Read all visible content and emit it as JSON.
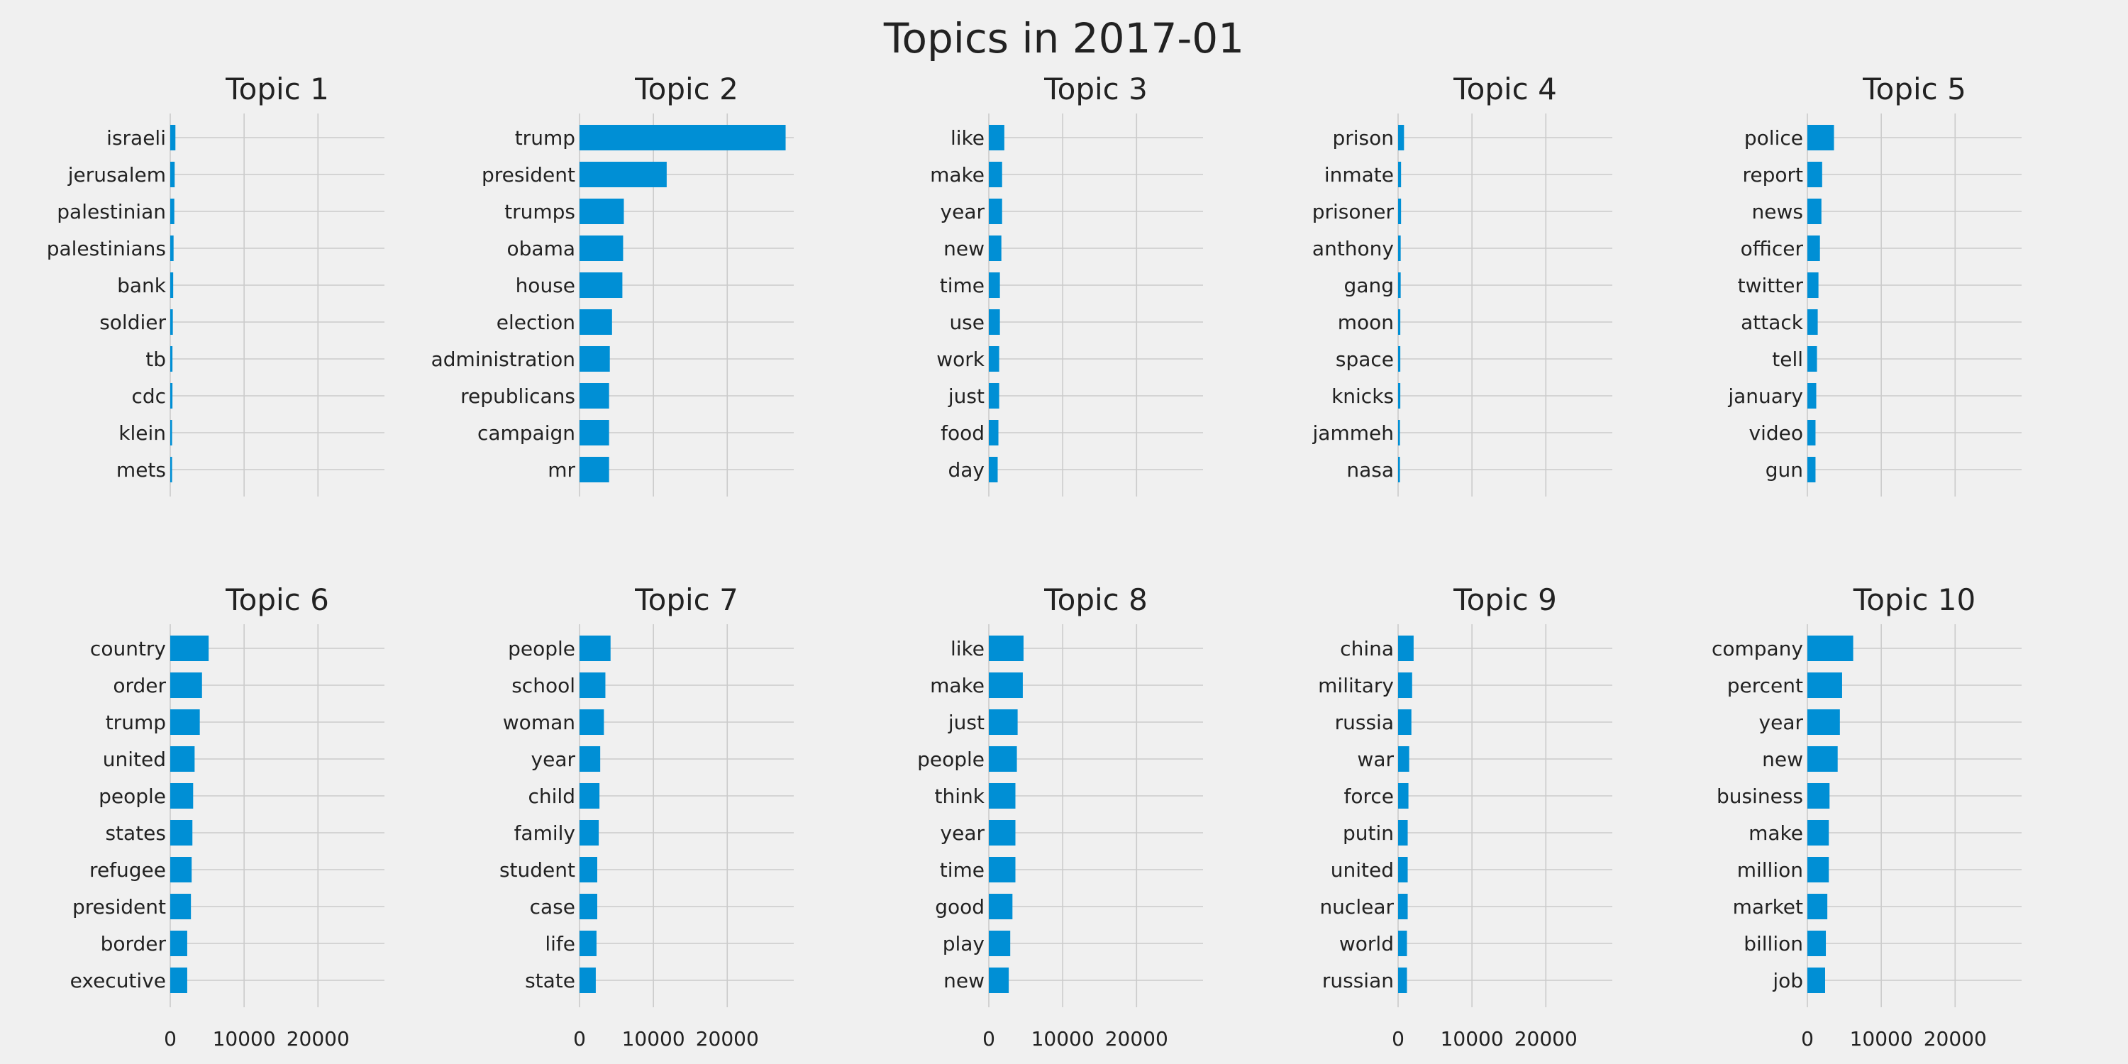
{
  "figure": {
    "title": "Topics in 2017-01"
  },
  "chart_data": [
    {
      "type": "bar",
      "orientation": "horizontal",
      "title": "Topic 1",
      "categories": [
        "israeli",
        "jerusalem",
        "palestinian",
        "palestinians",
        "bank",
        "soldier",
        "tb",
        "cdc",
        "klein",
        "mets"
      ],
      "values": [
        700,
        600,
        550,
        450,
        400,
        350,
        300,
        300,
        250,
        250
      ],
      "xlim": [
        0,
        29000
      ],
      "xticks": [
        0,
        10000,
        20000
      ],
      "grid": true
    },
    {
      "type": "bar",
      "orientation": "horizontal",
      "title": "Topic 2",
      "categories": [
        "trump",
        "president",
        "trumps",
        "obama",
        "house",
        "election",
        "administration",
        "republicans",
        "campaign",
        "mr"
      ],
      "values": [
        27900,
        11800,
        6000,
        5900,
        5800,
        4400,
        4100,
        4000,
        4000,
        4000
      ],
      "xlim": [
        0,
        29000
      ],
      "xticks": [
        0,
        10000,
        20000
      ],
      "grid": true
    },
    {
      "type": "bar",
      "orientation": "horizontal",
      "title": "Topic 3",
      "categories": [
        "like",
        "make",
        "year",
        "new",
        "time",
        "use",
        "work",
        "just",
        "food",
        "day"
      ],
      "values": [
        2100,
        1800,
        1800,
        1700,
        1500,
        1500,
        1400,
        1400,
        1300,
        1200
      ],
      "xlim": [
        0,
        29000
      ],
      "xticks": [
        0,
        10000,
        20000
      ],
      "grid": true
    },
    {
      "type": "bar",
      "orientation": "horizontal",
      "title": "Topic 4",
      "categories": [
        "prison",
        "inmate",
        "prisoner",
        "anthony",
        "gang",
        "moon",
        "space",
        "knicks",
        "jammeh",
        "nasa"
      ],
      "values": [
        800,
        400,
        400,
        350,
        350,
        300,
        300,
        300,
        250,
        250
      ],
      "xlim": [
        0,
        29000
      ],
      "xticks": [
        0,
        10000,
        20000
      ],
      "grid": true
    },
    {
      "type": "bar",
      "orientation": "horizontal",
      "title": "Topic 5",
      "categories": [
        "police",
        "report",
        "news",
        "officer",
        "twitter",
        "attack",
        "tell",
        "january",
        "video",
        "gun"
      ],
      "values": [
        3600,
        2000,
        1900,
        1700,
        1500,
        1400,
        1300,
        1200,
        1100,
        1100
      ],
      "xlim": [
        0,
        29000
      ],
      "xticks": [
        0,
        10000,
        20000
      ],
      "grid": true
    },
    {
      "type": "bar",
      "orientation": "horizontal",
      "title": "Topic 6",
      "categories": [
        "country",
        "order",
        "trump",
        "united",
        "people",
        "states",
        "refugee",
        "president",
        "border",
        "executive"
      ],
      "values": [
        5200,
        4300,
        4000,
        3300,
        3100,
        3000,
        2900,
        2800,
        2300,
        2300
      ],
      "xlim": [
        0,
        29000
      ],
      "xticks": [
        0,
        10000,
        20000
      ],
      "grid": true
    },
    {
      "type": "bar",
      "orientation": "horizontal",
      "title": "Topic 7",
      "categories": [
        "people",
        "school",
        "woman",
        "year",
        "child",
        "family",
        "student",
        "case",
        "life",
        "state"
      ],
      "values": [
        4200,
        3500,
        3300,
        2800,
        2700,
        2600,
        2400,
        2400,
        2300,
        2200
      ],
      "xlim": [
        0,
        29000
      ],
      "xticks": [
        0,
        10000,
        20000
      ],
      "grid": true
    },
    {
      "type": "bar",
      "orientation": "horizontal",
      "title": "Topic 8",
      "categories": [
        "like",
        "make",
        "just",
        "people",
        "think",
        "year",
        "time",
        "good",
        "play",
        "new"
      ],
      "values": [
        4700,
        4600,
        3900,
        3800,
        3600,
        3600,
        3600,
        3200,
        2900,
        2700
      ],
      "xlim": [
        0,
        29000
      ],
      "xticks": [
        0,
        10000,
        20000
      ],
      "grid": true
    },
    {
      "type": "bar",
      "orientation": "horizontal",
      "title": "Topic 9",
      "categories": [
        "china",
        "military",
        "russia",
        "war",
        "force",
        "putin",
        "united",
        "nuclear",
        "world",
        "russian"
      ],
      "values": [
        2100,
        1900,
        1800,
        1500,
        1400,
        1300,
        1300,
        1300,
        1200,
        1200
      ],
      "xlim": [
        0,
        29000
      ],
      "xticks": [
        0,
        10000,
        20000
      ],
      "grid": true
    },
    {
      "type": "bar",
      "orientation": "horizontal",
      "title": "Topic 10",
      "categories": [
        "company",
        "percent",
        "year",
        "new",
        "business",
        "make",
        "million",
        "market",
        "billion",
        "job"
      ],
      "values": [
        6200,
        4700,
        4400,
        4100,
        3000,
        2900,
        2900,
        2700,
        2500,
        2400
      ],
      "xlim": [
        0,
        29000
      ],
      "xticks": [
        0,
        10000,
        20000
      ],
      "grid": true
    }
  ],
  "colors": {
    "bar": "#008fd5",
    "grid": "#cbcbcb",
    "background": "#f0f0f0",
    "text": "#222222"
  }
}
